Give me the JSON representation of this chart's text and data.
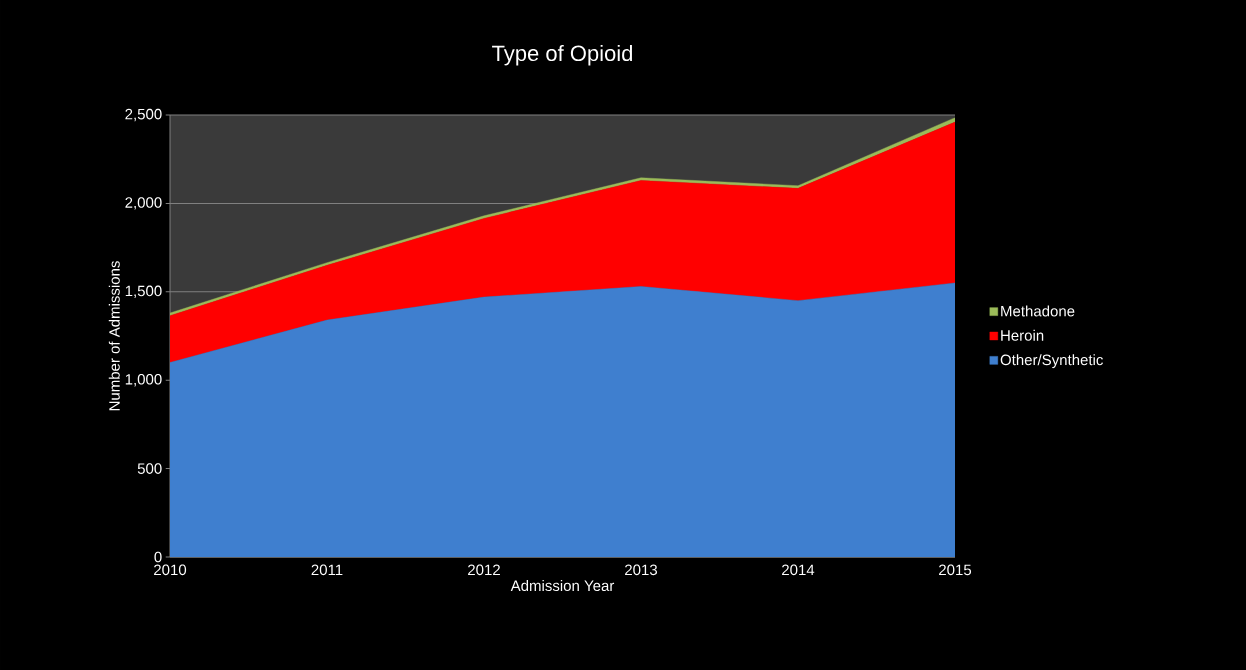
{
  "chart_data": {
    "type": "area",
    "title": "Type of Opioid",
    "xlabel": "Admission Year",
    "ylabel": "Number of Admissions",
    "categories": [
      "2010",
      "2011",
      "2012",
      "2013",
      "2014",
      "2015"
    ],
    "stacked": true,
    "series": [
      {
        "name": "Other/Synthetic",
        "color": "#3f7fcf",
        "values": [
          1100,
          1340,
          1470,
          1530,
          1450,
          1550
        ]
      },
      {
        "name": "Heroin",
        "color": "#ff0000",
        "values": [
          265,
          310,
          445,
          600,
          635,
          910
        ]
      },
      {
        "name": "Methadone",
        "color": "#9bbb59",
        "values": [
          15,
          15,
          15,
          15,
          15,
          25
        ]
      }
    ],
    "ylim": [
      0,
      2500
    ],
    "yticks": [
      {
        "value": 0,
        "label": "0"
      },
      {
        "value": 500,
        "label": "500"
      },
      {
        "value": 1000,
        "label": "1,000"
      },
      {
        "value": 1500,
        "label": "1,500"
      },
      {
        "value": 2000,
        "label": "2,000"
      },
      {
        "value": 2500,
        "label": "2,500"
      }
    ],
    "grid": "y",
    "legend": "right"
  }
}
